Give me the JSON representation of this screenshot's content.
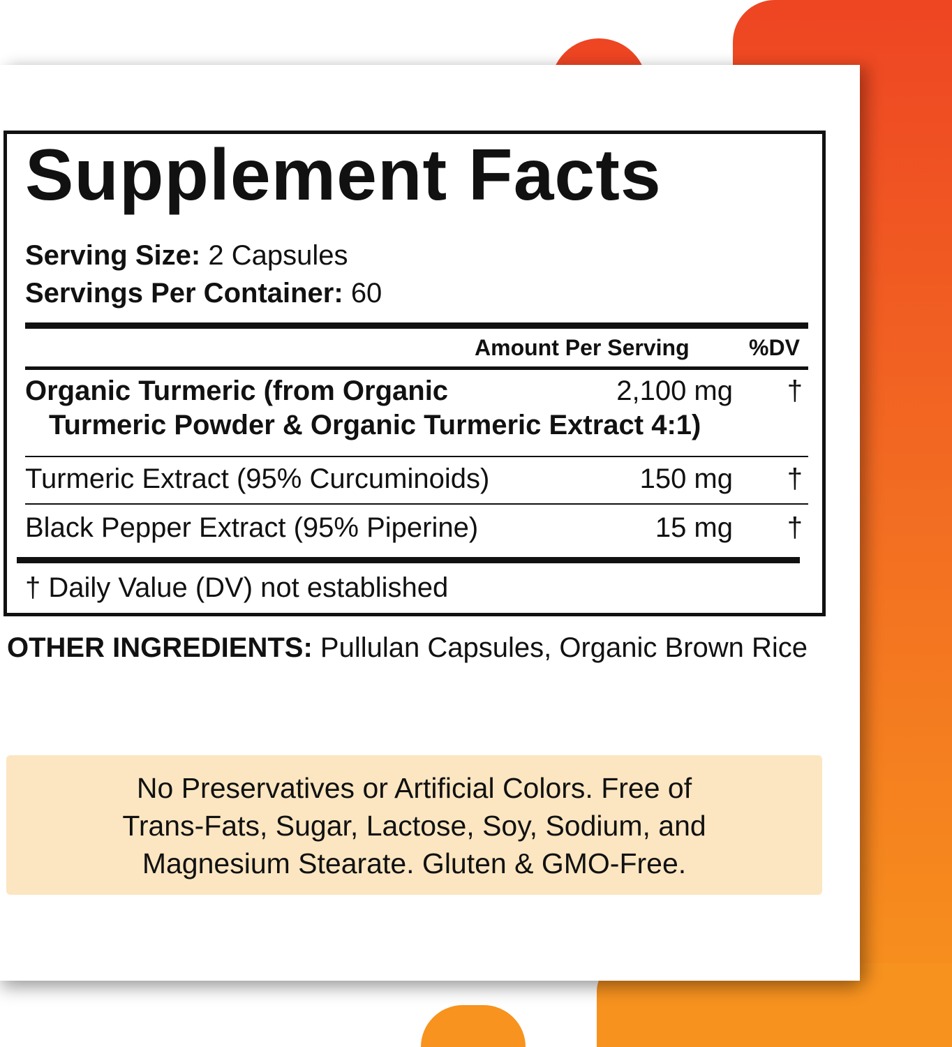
{
  "colors": {
    "accent_top": "#ee4523",
    "accent_bottom": "#f7941d",
    "banner_bg": "#fbe6c1"
  },
  "facts": {
    "title": "Supplement Facts",
    "serving_size_label": "Serving Size:",
    "serving_size_value": "2 Capsules",
    "servings_per_container_label": "Servings Per Container:",
    "servings_per_container_value": "60",
    "header_amount": "Amount Per Serving",
    "header_dv": "%DV",
    "ingredients": [
      {
        "name_line1": "Organic Turmeric (from Organic",
        "name_line2": "Turmeric Powder & Organic Turmeric Extract 4:1)",
        "amount": "2,100 mg",
        "dv": "†"
      },
      {
        "name": "Turmeric Extract (95% Curcuminoids)",
        "amount": "150 mg",
        "dv": "†"
      },
      {
        "name": "Black Pepper Extract (95% Piperine)",
        "amount": "15 mg",
        "dv": "†"
      }
    ],
    "footnote": "† Daily Value (DV) not established"
  },
  "other_ingredients": {
    "label": "OTHER INGREDIENTS:",
    "value": "Pullulan Capsules, Organic Brown Rice"
  },
  "banner": {
    "line1": "No Preservatives or Artificial Colors. Free of",
    "line2": "Trans-Fats, Sugar, Lactose, Soy, Sodium, and",
    "line3": "Magnesium Stearate. Gluten & GMO-Free."
  }
}
